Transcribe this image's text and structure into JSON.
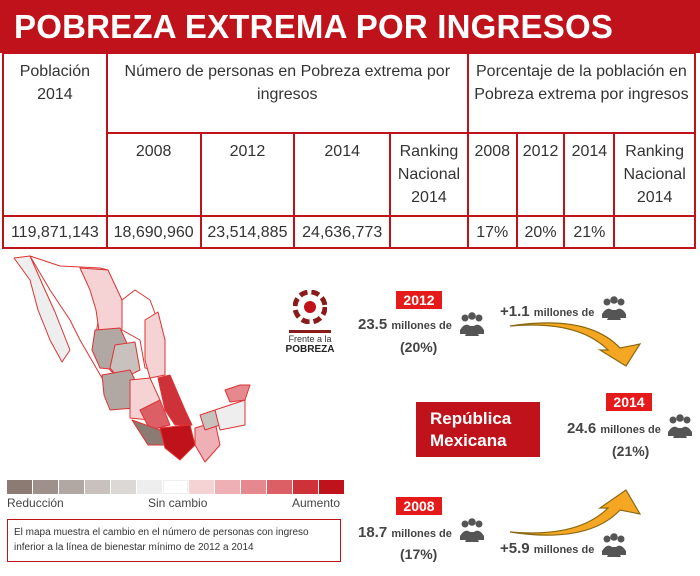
{
  "title": "POBREZA EXTREMA POR INGRESOS",
  "table": {
    "poblacion_header": "Población 2014",
    "numero_header": "Número de personas en Pobreza extrema por ingresos",
    "porcentaje_header": "Porcentaje de la población en Pobreza extrema por ingresos",
    "sub_headers_num": [
      "2008",
      "2012",
      "2014",
      "Ranking Nacional 2014"
    ],
    "sub_headers_pct": [
      "2008",
      "2012",
      "2014",
      "Ranking Nacional 2014"
    ],
    "row": {
      "poblacion": "119,871,143",
      "num": [
        "18,690,960",
        "23,514,885",
        "24,636,773",
        ""
      ],
      "pct": [
        "17%",
        "20%",
        "21%",
        ""
      ]
    }
  },
  "logo": {
    "line1": "Frente a la",
    "line2": "POBREZA"
  },
  "legend": {
    "left": "Reducción",
    "center": "Sin cambio",
    "right": "Aumento",
    "colors": [
      "#8b7b73",
      "#9e918b",
      "#b1a7a3",
      "#c8c1be",
      "#dcd8d6",
      "#efeeee",
      "#ffffff",
      "#f5d3d5",
      "#eeb0b4",
      "#e6898f",
      "#dc5f66",
      "#cf3138",
      "#c0121a"
    ]
  },
  "note": "El mapa muestra el cambio en el número de personas con ingreso inferior a la línea de bienestar mínimo de 2012 a 2014",
  "stats": {
    "y2012": {
      "badge": "2012",
      "value": "23.5",
      "unit": "millones de",
      "pct": "(20%)"
    },
    "y2014": {
      "badge": "2014",
      "value": "24.6",
      "unit": "millones de",
      "pct": "(21%)"
    },
    "y2008": {
      "badge": "2008",
      "value": "18.7",
      "unit": "millones de",
      "pct": "(17%)"
    },
    "change_12_14": {
      "value": "+1.1",
      "unit": "millones de"
    },
    "change_08_14": {
      "value": "+5.9",
      "unit": "millones de"
    }
  },
  "region": "República Mexicana",
  "colors": {
    "brand": "#c0121a",
    "badge": "#e51b1b",
    "arrow": "#f5a623"
  }
}
